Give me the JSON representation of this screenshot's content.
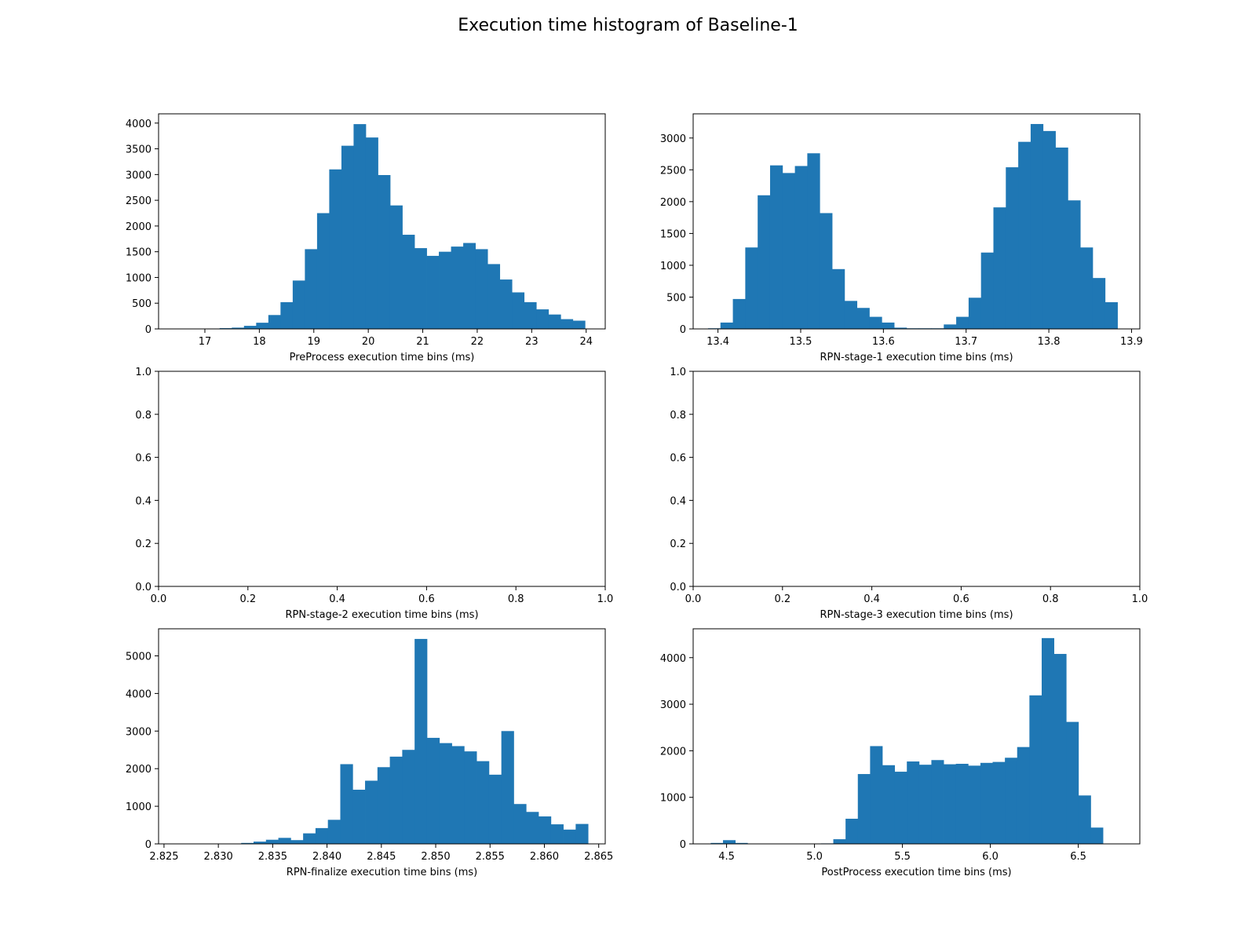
{
  "title": "Execution time histogram of Baseline-1",
  "bar_color": "#1f77b4",
  "chart_data": [
    {
      "type": "bar",
      "xlabel": "PreProcess execution time bins (ms)",
      "ylabel": "",
      "xlim": [
        16.15,
        24.35
      ],
      "ylim": [
        0,
        4180
      ],
      "xticks": [
        17,
        18,
        19,
        20,
        21,
        22,
        23,
        24
      ],
      "yticks": [
        0,
        500,
        1000,
        1500,
        2000,
        2500,
        3000,
        3500,
        4000
      ],
      "bin_start": 16.6,
      "bin_width": 0.2236,
      "values": [
        2,
        5,
        8,
        15,
        25,
        60,
        120,
        270,
        520,
        940,
        1550,
        2250,
        3100,
        3560,
        3980,
        3720,
        2990,
        2400,
        1830,
        1570,
        1420,
        1500,
        1600,
        1670,
        1550,
        1260,
        960,
        710,
        520,
        380,
        280,
        190,
        160
      ]
    },
    {
      "type": "bar",
      "xlabel": "RPN-stage-1 execution time bins (ms)",
      "ylabel": "",
      "xlim": [
        13.37,
        13.91
      ],
      "ylim": [
        0,
        3380
      ],
      "xticks": [
        13.4,
        13.5,
        13.6,
        13.7,
        13.8,
        13.9
      ],
      "yticks": [
        0,
        500,
        1000,
        1500,
        2000,
        2500,
        3000
      ],
      "bin_start": 13.388,
      "bin_width": 0.015,
      "values": [
        10,
        100,
        470,
        1280,
        2100,
        2570,
        2450,
        2560,
        2760,
        1820,
        940,
        440,
        330,
        190,
        100,
        20,
        10,
        10,
        10,
        70,
        190,
        490,
        1200,
        1910,
        2540,
        2940,
        3220,
        3110,
        2850,
        2020,
        1280,
        800,
        420
      ]
    },
    {
      "type": "bar",
      "xlabel": "RPN-stage-2 execution time bins (ms)",
      "ylabel": "",
      "xlim": [
        0,
        1
      ],
      "ylim": [
        0,
        1
      ],
      "xticks": [
        0.0,
        0.2,
        0.4,
        0.6,
        0.8,
        1.0
      ],
      "yticks": [
        0.0,
        0.2,
        0.4,
        0.6,
        0.8,
        1.0
      ],
      "bin_start": 0,
      "bin_width": 0,
      "values": []
    },
    {
      "type": "bar",
      "xlabel": "RPN-stage-3 execution time bins (ms)",
      "ylabel": "",
      "xlim": [
        0,
        1
      ],
      "ylim": [
        0,
        1
      ],
      "xticks": [
        0.0,
        0.2,
        0.4,
        0.6,
        0.8,
        1.0
      ],
      "yticks": [
        0.0,
        0.2,
        0.4,
        0.6,
        0.8,
        1.0
      ],
      "bin_start": 0,
      "bin_width": 0,
      "values": []
    },
    {
      "type": "bar",
      "xlabel": "RPN-finalize execution time bins (ms)",
      "ylabel": "",
      "xlim": [
        2.8245,
        2.8656
      ],
      "ylim": [
        0,
        5720
      ],
      "xticks": [
        2.825,
        2.83,
        2.835,
        2.84,
        2.845,
        2.85,
        2.855,
        2.86,
        2.865
      ],
      "ytick_labels_decimals": 0,
      "yticks": [
        0,
        1000,
        2000,
        3000,
        4000,
        5000
      ],
      "bin_start": 2.8264,
      "bin_width": 0.00114,
      "values": [
        2,
        2,
        2,
        5,
        10,
        25,
        60,
        110,
        160,
        100,
        280,
        420,
        640,
        2120,
        1440,
        1680,
        2040,
        2320,
        2500,
        5450,
        2820,
        2680,
        2600,
        2460,
        2200,
        1840,
        3000,
        1060,
        850,
        730,
        520,
        380,
        530
      ]
    },
    {
      "type": "bar",
      "xlabel": "PostProcess execution time bins (ms)",
      "ylabel": "",
      "xlim": [
        4.31,
        6.85
      ],
      "ylim": [
        0,
        4620
      ],
      "xticks": [
        4.5,
        5.0,
        5.5,
        6.0,
        6.5
      ],
      "yticks": [
        0,
        1000,
        2000,
        3000,
        4000
      ],
      "bin_start": 4.41,
      "bin_width": 0.0697,
      "values": [
        20,
        80,
        20,
        5,
        5,
        5,
        5,
        5,
        5,
        10,
        100,
        540,
        1500,
        2100,
        1690,
        1550,
        1770,
        1700,
        1800,
        1710,
        1720,
        1680,
        1740,
        1760,
        1850,
        2080,
        3190,
        4420,
        4080,
        2620,
        1040,
        350
      ]
    }
  ]
}
